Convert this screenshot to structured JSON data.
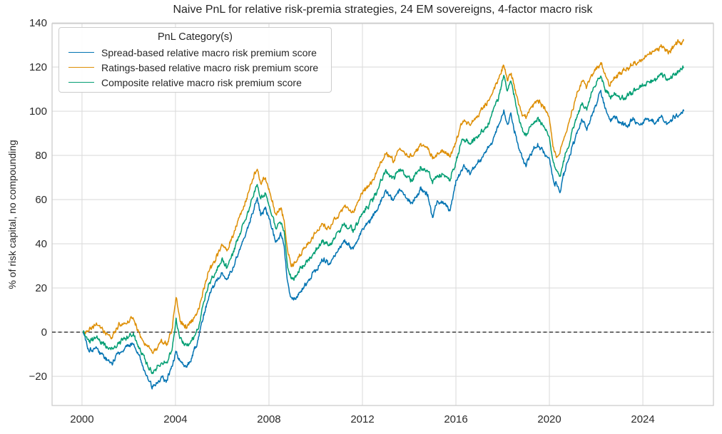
{
  "chart_data": {
    "type": "line",
    "title": "Naive PnL for relative risk-premia strategies, 24 EM sovereigns, 4-factor macro risk",
    "xlabel": "",
    "ylabel": "% of risk capital, no compounding",
    "x_ticks": [
      2000,
      2004,
      2008,
      2012,
      2016,
      2020,
      2024
    ],
    "y_ticks": [
      -20,
      0,
      20,
      40,
      60,
      80,
      100,
      120,
      140
    ],
    "xlim": [
      1998.72,
      2027.02
    ],
    "ylim": [
      -33.2,
      139.7
    ],
    "grid": true,
    "grid_color": "#dcdcdc",
    "spine_color": "#c9c9c9",
    "text_color": "#262626",
    "background_color": "#ffffff",
    "legend": {
      "title": "PnL Category(s)",
      "position": "upper-left"
    },
    "zero_line": {
      "y": 0,
      "style": "dashed",
      "color": "#000000"
    },
    "noise_amplitude": 1.5,
    "x": [
      2000.05,
      2000.3,
      2000.6,
      2001.0,
      2001.3,
      2001.6,
      2001.9,
      2002.2,
      2002.5,
      2002.8,
      2003.0,
      2003.2,
      2003.4,
      2003.6,
      2003.85,
      2004.03,
      2004.2,
      2004.45,
      2004.7,
      2004.95,
      2005.2,
      2005.45,
      2005.7,
      2006.0,
      2006.2,
      2006.5,
      2006.8,
      2007.1,
      2007.3,
      2007.5,
      2007.65,
      2007.85,
      2008.1,
      2008.3,
      2008.5,
      2008.65,
      2008.8,
      2008.95,
      2009.15,
      2009.4,
      2009.7,
      2010.0,
      2010.3,
      2010.6,
      2011.0,
      2011.2,
      2011.6,
      2012.0,
      2012.5,
      2013.0,
      2013.3,
      2013.6,
      2014.1,
      2014.5,
      2014.8,
      2015.0,
      2015.2,
      2015.5,
      2015.75,
      2016.0,
      2016.3,
      2016.6,
      2016.9,
      2017.2,
      2017.5,
      2017.8,
      2018.05,
      2018.2,
      2018.35,
      2018.6,
      2018.8,
      2019.0,
      2019.2,
      2019.5,
      2019.8,
      2020.0,
      2020.15,
      2020.3,
      2020.45,
      2020.6,
      2020.8,
      2021.0,
      2021.2,
      2021.4,
      2021.6,
      2021.8,
      2022.0,
      2022.2,
      2022.4,
      2022.6,
      2022.8,
      2023.0,
      2023.3,
      2023.6,
      2023.9,
      2024.2,
      2024.5,
      2024.8,
      2025.05,
      2025.3,
      2025.5,
      2025.75
    ],
    "series": [
      {
        "name": "Spread-based relative macro risk premium score",
        "color": "#0173b2",
        "y": [
          0,
          -8,
          -7,
          -12,
          -14,
          -9,
          -7,
          -5,
          -12,
          -21,
          -25,
          -23,
          -20,
          -22,
          -15,
          -9,
          -13,
          -16,
          -11,
          -4,
          8,
          17,
          22,
          27,
          23,
          30,
          39,
          47,
          54,
          60,
          53,
          56,
          48,
          41,
          44,
          39,
          22,
          16,
          15,
          19,
          23,
          28,
          33,
          31,
          38,
          42,
          37,
          46,
          53,
          64,
          60,
          65,
          58,
          65,
          62,
          51,
          59,
          58,
          55,
          68,
          75,
          72,
          76,
          80,
          85,
          93,
          100,
          94,
          99,
          87,
          80,
          75,
          81,
          85,
          81,
          78,
          69,
          67,
          64,
          71,
          77,
          84,
          91,
          96,
          92,
          97,
          103,
          109,
          101,
          95,
          98,
          95,
          93,
          96,
          94,
          97,
          95,
          98,
          94,
          97,
          99,
          100
        ]
      },
      {
        "name": "Ratings-based relative macro risk premium score",
        "color": "#de8f05",
        "y": [
          0,
          1,
          3,
          0,
          -2,
          3,
          4,
          6,
          -2,
          -6,
          -9,
          -7,
          -4,
          -6,
          1,
          16,
          5,
          2,
          5,
          9,
          19,
          28,
          33,
          40,
          37,
          45,
          54,
          62,
          69,
          74,
          67,
          70,
          61,
          53,
          56,
          51,
          36,
          30,
          32,
          36,
          40,
          45,
          49,
          47,
          54,
          57,
          54,
          63,
          70,
          81,
          78,
          83,
          79,
          85,
          83,
          79,
          81,
          82,
          80,
          86,
          96,
          94,
          98,
          102,
          107,
          114,
          121,
          115,
          118,
          107,
          100,
          97,
          102,
          105,
          101,
          97,
          85,
          80,
          81,
          87,
          94,
          101,
          109,
          114,
          111,
          117,
          119,
          122,
          116,
          112,
          115,
          117,
          119,
          121,
          123,
          125,
          127,
          130,
          127,
          129,
          131,
          132
        ]
      },
      {
        "name": "Composite relative macro risk premium score",
        "color": "#029e73",
        "y": [
          0,
          -4,
          -3,
          -6,
          -8,
          -5,
          -3,
          -1,
          -8,
          -15,
          -18,
          -16,
          -13,
          -15,
          -8,
          5,
          -3,
          -7,
          -4,
          1,
          13,
          22,
          27,
          33,
          29,
          37,
          46,
          54,
          61,
          67,
          60,
          63,
          54,
          47,
          50,
          45,
          29,
          24,
          25,
          29,
          33,
          37,
          41,
          39,
          46,
          49,
          46,
          54,
          61,
          73,
          69,
          74,
          69,
          75,
          73,
          68,
          71,
          71,
          69,
          77,
          88,
          85,
          88,
          92,
          97,
          106,
          116,
          110,
          114,
          101,
          93,
          89,
          93,
          97,
          93,
          88,
          77,
          73,
          70,
          77,
          84,
          91,
          98,
          104,
          101,
          108,
          113,
          116,
          110,
          106,
          108,
          106,
          107,
          109,
          111,
          113,
          114,
          117,
          114,
          116,
          118,
          120
        ]
      }
    ]
  }
}
